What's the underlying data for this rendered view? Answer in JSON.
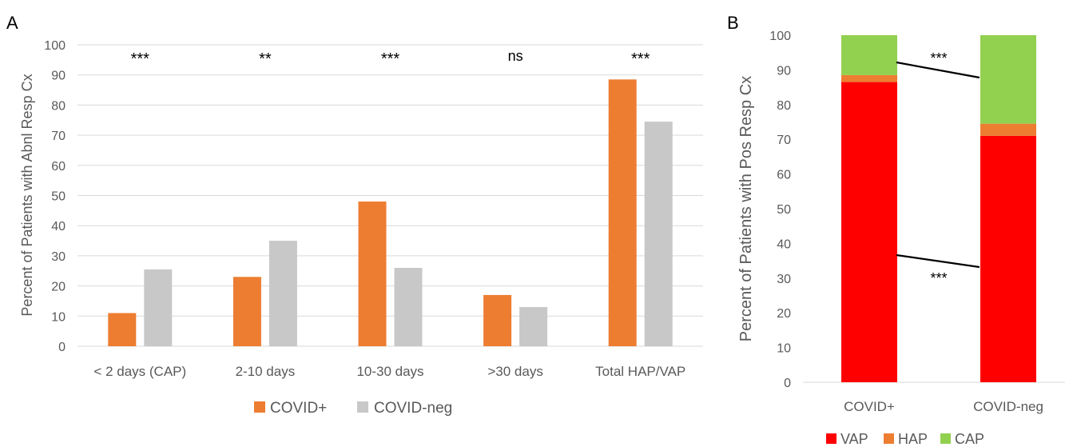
{
  "colors": {
    "covid_pos": "#ED7D31",
    "covid_neg": "#C8C8C8",
    "vap": "#FF0000",
    "hap": "#ED7D31",
    "cap": "#92D050",
    "grid": "#D9D9D9",
    "axis_text": "#595959",
    "annotation": "#000000"
  },
  "chart_data": [
    {
      "panel_label": "A",
      "type": "bar",
      "ylabel": "Percent of Patients with Abnl Resp Cx",
      "ylim": [
        0,
        100
      ],
      "yticks": [
        0,
        10,
        20,
        30,
        40,
        50,
        60,
        70,
        80,
        90,
        100
      ],
      "grid": true,
      "legend_position": "bottom",
      "categories": [
        "< 2 days (CAP)",
        "2-10 days",
        "10-30 days",
        ">30 days",
        "Total HAP/VAP"
      ],
      "series": [
        {
          "name": "COVID+",
          "values": [
            11,
            23,
            48,
            17,
            88.5
          ]
        },
        {
          "name": "COVID-neg",
          "values": [
            25.5,
            35,
            26,
            13,
            74.5
          ]
        }
      ],
      "significance": [
        "***",
        "**",
        "***",
        "ns",
        "***"
      ]
    },
    {
      "panel_label": "B",
      "type": "bar",
      "stacked": true,
      "ylabel": "Percent of Patients with Pos Resp Cx",
      "ylim": [
        0,
        100
      ],
      "yticks": [
        0,
        10,
        20,
        30,
        40,
        50,
        60,
        70,
        80,
        90,
        100
      ],
      "grid": false,
      "legend_position": "bottom",
      "categories": [
        "COVID+",
        "COVID-neg"
      ],
      "series": [
        {
          "name": "VAP",
          "values": [
            86.5,
            71
          ]
        },
        {
          "name": "HAP",
          "values": [
            2,
            3.5
          ]
        },
        {
          "name": "CAP",
          "values": [
            11.5,
            25.5
          ]
        }
      ],
      "annotations": [
        "***",
        "***"
      ]
    }
  ]
}
